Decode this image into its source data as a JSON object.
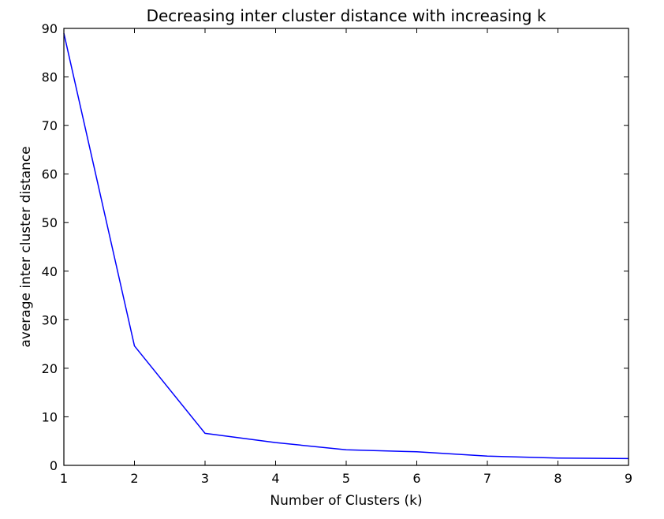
{
  "chart_data": {
    "type": "line",
    "title": "Decreasing inter cluster distance with increasing k",
    "xlabel": "Number of Clusters (k)",
    "ylabel": "average inter cluster distance",
    "xlim": [
      1,
      9
    ],
    "ylim": [
      0,
      90
    ],
    "xticks": [
      1,
      2,
      3,
      4,
      5,
      6,
      7,
      8,
      9
    ],
    "yticks": [
      0,
      10,
      20,
      30,
      40,
      50,
      60,
      70,
      80,
      90
    ],
    "grid": false,
    "series": [
      {
        "color": "#0000ff",
        "x": [
          1,
          2,
          3,
          4,
          5,
          6,
          7,
          8,
          9
        ],
        "y": [
          89.0,
          24.6,
          6.6,
          4.7,
          3.2,
          2.8,
          1.9,
          1.5,
          1.4
        ]
      }
    ]
  }
}
